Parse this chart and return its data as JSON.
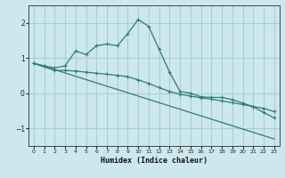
{
  "xlabel": "Humidex (Indice chaleur)",
  "bg_color": "#cce8ee",
  "grid_color": "#aacdd6",
  "line_color": "#2e7d6e",
  "xlim": [
    -0.5,
    23.5
  ],
  "ylim": [
    -1.5,
    2.5
  ],
  "yticks": [
    -1,
    0,
    1,
    2
  ],
  "xticks": [
    0,
    1,
    2,
    3,
    4,
    5,
    6,
    7,
    8,
    9,
    10,
    11,
    12,
    13,
    14,
    15,
    16,
    17,
    18,
    19,
    20,
    21,
    22,
    23
  ],
  "curve1_x": [
    0,
    1,
    2,
    3,
    4,
    5,
    6,
    7,
    8,
    9,
    10,
    11,
    12,
    13,
    14,
    15,
    16,
    17,
    18,
    19,
    20,
    21,
    22,
    23
  ],
  "curve1_y": [
    0.85,
    0.78,
    0.72,
    0.78,
    1.2,
    1.1,
    1.35,
    1.4,
    1.35,
    1.7,
    2.1,
    1.9,
    1.25,
    0.6,
    0.05,
    0.0,
    -0.1,
    -0.12,
    -0.12,
    -0.18,
    -0.28,
    -0.38,
    -0.55,
    -0.7
  ],
  "curve2_x": [
    0,
    2,
    3,
    4,
    5,
    6,
    7,
    8,
    9,
    10,
    11,
    12,
    13,
    14,
    15,
    16,
    17,
    18,
    19,
    20,
    21,
    22,
    23
  ],
  "curve2_y": [
    0.85,
    0.65,
    0.65,
    0.63,
    0.6,
    0.57,
    0.54,
    0.51,
    0.47,
    0.38,
    0.28,
    0.16,
    0.05,
    -0.03,
    -0.08,
    -0.13,
    -0.17,
    -0.22,
    -0.27,
    -0.32,
    -0.38,
    -0.43,
    -0.52
  ],
  "curve3_x": [
    0,
    2,
    23
  ],
  "curve3_y": [
    0.85,
    0.67,
    -1.3
  ]
}
